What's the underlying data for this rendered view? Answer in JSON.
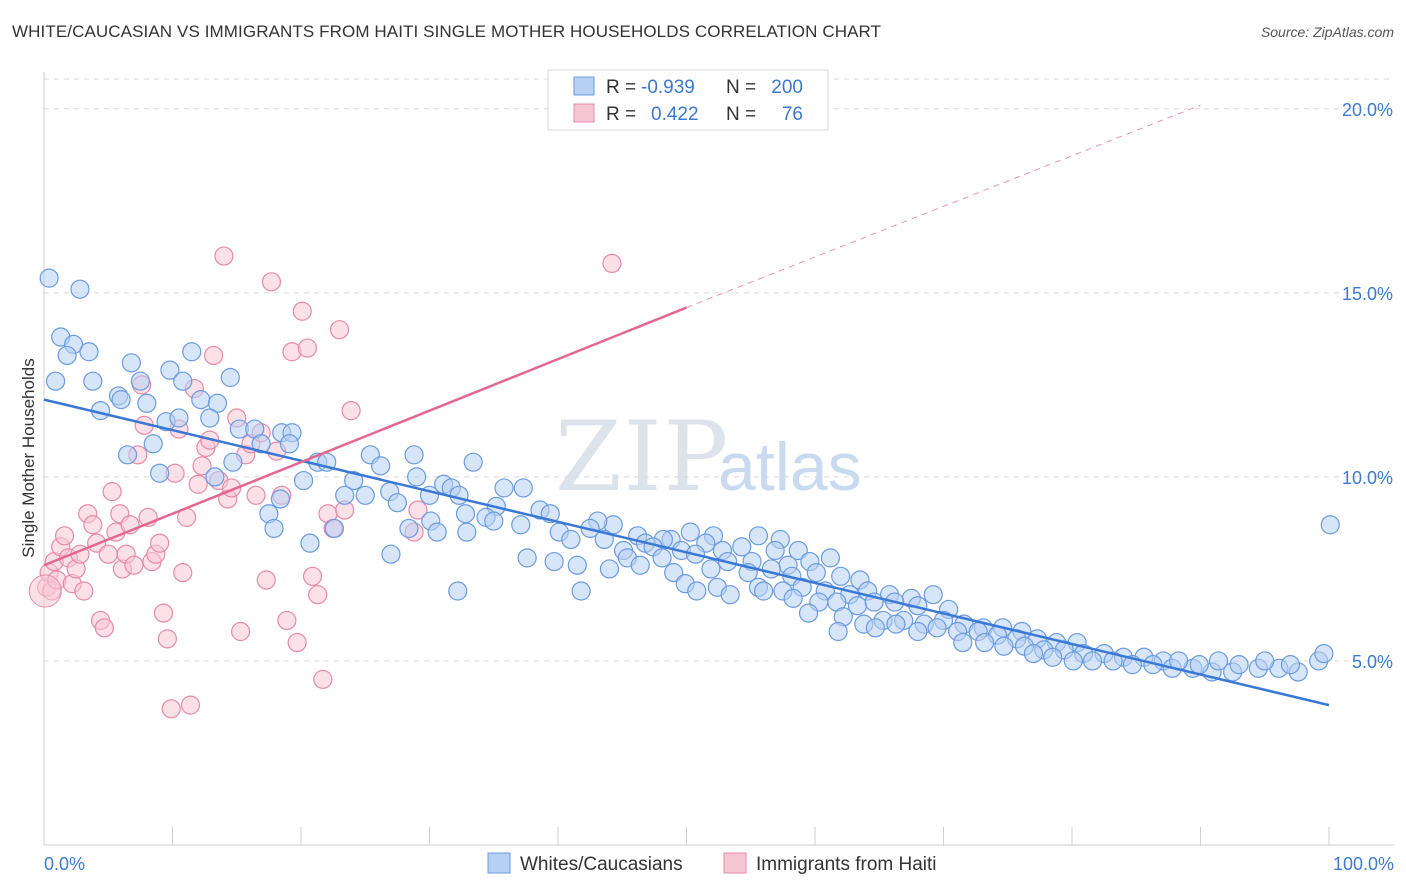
{
  "title": "WHITE/CAUCASIAN VS IMMIGRANTS FROM HAITI SINGLE MOTHER HOUSEHOLDS CORRELATION CHART",
  "source": "Source: ZipAtlas.com",
  "watermark": {
    "zip": "ZIP",
    "atlas": "atlas"
  },
  "colors": {
    "blue_fill": "#b7d0f3",
    "blue_stroke": "#6a9be0",
    "blue_line": "#3a78d4",
    "pink_fill": "#f7c6d5",
    "pink_stroke": "#e68aa8",
    "pink_line": "#e46790",
    "tick_text": "#3d7bd0",
    "grid": "#d8d8d8"
  },
  "stats_legend": {
    "rows": [
      {
        "series": "blue",
        "r_label": "R =",
        "r_value": "-0.939",
        "n_label": "N =",
        "n_value": "200"
      },
      {
        "series": "pink",
        "r_label": "R =",
        "r_value": "0.422",
        "n_label": "N =",
        "n_value": "76"
      }
    ]
  },
  "chart_data": {
    "type": "scatter",
    "title": "WHITE/CAUCASIAN VS IMMIGRANTS FROM HAITI SINGLE MOTHER HOUSEHOLDS CORRELATION CHART",
    "xlabel": "",
    "ylabel": "Single Mother Households",
    "xlim": [
      0,
      100
    ],
    "ylim": [
      0,
      21
    ],
    "x_tick_labels": [
      "0.0%",
      "100.0%"
    ],
    "y_ticks": [
      5,
      10,
      15,
      20
    ],
    "y_tick_labels": [
      "5.0%",
      "10.0%",
      "15.0%",
      "20.0%"
    ],
    "grid": "horizontal dashed",
    "legend_position": "bottom-center",
    "series": [
      {
        "name": "Whites/Caucasians",
        "color": "#6a9be0",
        "r": -0.939,
        "n": 200,
        "trend": {
          "x": [
            0,
            100
          ],
          "y": [
            12.1,
            3.8
          ]
        },
        "points": [
          [
            0.4,
            15.4
          ],
          [
            2.8,
            15.1
          ],
          [
            1.3,
            13.8
          ],
          [
            2.3,
            13.6
          ],
          [
            3.5,
            13.4
          ],
          [
            1.8,
            13.3
          ],
          [
            6.8,
            13.1
          ],
          [
            11.5,
            13.4
          ],
          [
            9.8,
            12.9
          ],
          [
            14.5,
            12.7
          ],
          [
            0.9,
            12.6
          ],
          [
            3.8,
            12.6
          ],
          [
            7.5,
            12.6
          ],
          [
            10.8,
            12.6
          ],
          [
            5.8,
            12.2
          ],
          [
            6.0,
            12.1
          ],
          [
            8.0,
            12.0
          ],
          [
            12.2,
            12.1
          ],
          [
            13.5,
            12.0
          ],
          [
            4.4,
            11.8
          ],
          [
            9.5,
            11.5
          ],
          [
            10.5,
            11.6
          ],
          [
            12.9,
            11.6
          ],
          [
            15.2,
            11.3
          ],
          [
            16.4,
            11.3
          ],
          [
            18.5,
            11.2
          ],
          [
            19.3,
            11.2
          ],
          [
            8.5,
            10.9
          ],
          [
            16.9,
            10.9
          ],
          [
            19.1,
            10.9
          ],
          [
            6.5,
            10.6
          ],
          [
            14.7,
            10.4
          ],
          [
            21.3,
            10.4
          ],
          [
            22.0,
            10.4
          ],
          [
            25.4,
            10.6
          ],
          [
            28.8,
            10.6
          ],
          [
            33.4,
            10.4
          ],
          [
            9.0,
            10.1
          ],
          [
            13.3,
            10.0
          ],
          [
            26.2,
            10.3
          ],
          [
            29.0,
            10.0
          ],
          [
            20.2,
            9.9
          ],
          [
            24.1,
            9.9
          ],
          [
            31.1,
            9.8
          ],
          [
            31.7,
            9.7
          ],
          [
            35.8,
            9.7
          ],
          [
            37.3,
            9.7
          ],
          [
            26.9,
            9.6
          ],
          [
            23.4,
            9.5
          ],
          [
            25.0,
            9.5
          ],
          [
            30.0,
            9.5
          ],
          [
            32.3,
            9.5
          ],
          [
            18.4,
            9.4
          ],
          [
            27.5,
            9.3
          ],
          [
            35.2,
            9.2
          ],
          [
            38.6,
            9.1
          ],
          [
            39.4,
            9.0
          ],
          [
            17.5,
            9.0
          ],
          [
            32.8,
            9.0
          ],
          [
            34.4,
            8.9
          ],
          [
            35.0,
            8.8
          ],
          [
            30.1,
            8.8
          ],
          [
            37.1,
            8.7
          ],
          [
            44.3,
            8.7
          ],
          [
            43.1,
            8.8
          ],
          [
            17.9,
            8.6
          ],
          [
            22.6,
            8.6
          ],
          [
            28.4,
            8.6
          ],
          [
            30.6,
            8.5
          ],
          [
            32.9,
            8.5
          ],
          [
            40.1,
            8.5
          ],
          [
            42.5,
            8.6
          ],
          [
            46.2,
            8.4
          ],
          [
            48.8,
            8.3
          ],
          [
            50.3,
            8.5
          ],
          [
            52.1,
            8.4
          ],
          [
            55.6,
            8.4
          ],
          [
            41.0,
            8.3
          ],
          [
            20.7,
            8.2
          ],
          [
            43.6,
            8.3
          ],
          [
            46.8,
            8.2
          ],
          [
            48.2,
            8.3
          ],
          [
            51.5,
            8.2
          ],
          [
            57.3,
            8.3
          ],
          [
            45.1,
            8.0
          ],
          [
            47.4,
            8.1
          ],
          [
            49.6,
            8.0
          ],
          [
            52.8,
            8.0
          ],
          [
            54.3,
            8.1
          ],
          [
            56.9,
            8.0
          ],
          [
            58.7,
            8.0
          ],
          [
            27.0,
            7.9
          ],
          [
            37.6,
            7.8
          ],
          [
            45.4,
            7.8
          ],
          [
            48.1,
            7.8
          ],
          [
            50.7,
            7.9
          ],
          [
            53.2,
            7.7
          ],
          [
            55.1,
            7.7
          ],
          [
            57.9,
            7.6
          ],
          [
            59.6,
            7.7
          ],
          [
            61.2,
            7.8
          ],
          [
            39.7,
            7.7
          ],
          [
            41.5,
            7.6
          ],
          [
            44.0,
            7.5
          ],
          [
            46.4,
            7.6
          ],
          [
            49.0,
            7.4
          ],
          [
            51.9,
            7.5
          ],
          [
            54.8,
            7.4
          ],
          [
            56.6,
            7.5
          ],
          [
            58.2,
            7.3
          ],
          [
            60.1,
            7.4
          ],
          [
            62.0,
            7.3
          ],
          [
            63.5,
            7.2
          ],
          [
            49.9,
            7.1
          ],
          [
            52.4,
            7.0
          ],
          [
            55.6,
            7.0
          ],
          [
            57.5,
            6.9
          ],
          [
            59.0,
            7.0
          ],
          [
            60.8,
            6.9
          ],
          [
            62.7,
            6.8
          ],
          [
            64.1,
            6.9
          ],
          [
            65.8,
            6.8
          ],
          [
            67.5,
            6.7
          ],
          [
            69.2,
            6.8
          ],
          [
            53.4,
            6.8
          ],
          [
            56.0,
            6.9
          ],
          [
            58.3,
            6.7
          ],
          [
            60.3,
            6.6
          ],
          [
            61.7,
            6.6
          ],
          [
            63.3,
            6.5
          ],
          [
            64.6,
            6.6
          ],
          [
            66.2,
            6.6
          ],
          [
            68.0,
            6.5
          ],
          [
            70.4,
            6.4
          ],
          [
            41.8,
            6.9
          ],
          [
            32.2,
            6.9
          ],
          [
            50.8,
            6.9
          ],
          [
            59.5,
            6.3
          ],
          [
            62.2,
            6.2
          ],
          [
            63.8,
            6.0
          ],
          [
            65.3,
            6.1
          ],
          [
            66.9,
            6.1
          ],
          [
            68.5,
            6.0
          ],
          [
            70.0,
            6.1
          ],
          [
            71.6,
            6.0
          ],
          [
            73.1,
            5.9
          ],
          [
            74.6,
            5.9
          ],
          [
            76.1,
            5.8
          ],
          [
            64.7,
            5.9
          ],
          [
            66.3,
            6.0
          ],
          [
            68.0,
            5.8
          ],
          [
            69.5,
            5.9
          ],
          [
            71.1,
            5.8
          ],
          [
            72.7,
            5.8
          ],
          [
            74.2,
            5.7
          ],
          [
            75.7,
            5.6
          ],
          [
            77.3,
            5.6
          ],
          [
            78.8,
            5.5
          ],
          [
            80.4,
            5.5
          ],
          [
            61.8,
            5.8
          ],
          [
            71.5,
            5.5
          ],
          [
            73.2,
            5.5
          ],
          [
            74.7,
            5.4
          ],
          [
            76.3,
            5.4
          ],
          [
            77.8,
            5.3
          ],
          [
            79.4,
            5.3
          ],
          [
            80.9,
            5.2
          ],
          [
            82.5,
            5.2
          ],
          [
            84.0,
            5.1
          ],
          [
            85.6,
            5.1
          ],
          [
            87.1,
            5.0
          ],
          [
            77.0,
            5.2
          ],
          [
            78.5,
            5.1
          ],
          [
            80.1,
            5.0
          ],
          [
            81.6,
            5.0
          ],
          [
            83.2,
            5.0
          ],
          [
            84.7,
            4.9
          ],
          [
            86.3,
            4.9
          ],
          [
            87.8,
            4.8
          ],
          [
            89.4,
            4.8
          ],
          [
            90.9,
            4.7
          ],
          [
            92.5,
            4.7
          ],
          [
            88.3,
            5.0
          ],
          [
            89.9,
            4.9
          ],
          [
            91.4,
            5.0
          ],
          [
            93.0,
            4.9
          ],
          [
            94.5,
            4.8
          ],
          [
            96.1,
            4.8
          ],
          [
            97.6,
            4.7
          ],
          [
            99.2,
            5.0
          ],
          [
            95.0,
            5.0
          ],
          [
            97.0,
            4.9
          ],
          [
            99.6,
            5.2
          ],
          [
            100.1,
            8.7
          ]
        ]
      },
      {
        "name": "Immigrants from Haiti",
        "color": "#e68aa8",
        "r": 0.422,
        "n": 76,
        "trend": {
          "x": [
            0,
            50
          ],
          "y": [
            7.6,
            14.6
          ]
        },
        "trend_extension": {
          "x": [
            50,
            90
          ],
          "y": [
            14.6,
            20.1
          ]
        },
        "points": [
          [
            0.2,
            7.0
          ],
          [
            0.4,
            7.4
          ],
          [
            0.6,
            6.9
          ],
          [
            0.8,
            7.7
          ],
          [
            1.0,
            7.2
          ],
          [
            1.3,
            8.1
          ],
          [
            1.6,
            8.4
          ],
          [
            1.9,
            7.8
          ],
          [
            2.2,
            7.1
          ],
          [
            2.5,
            7.5
          ],
          [
            2.8,
            7.9
          ],
          [
            3.1,
            6.9
          ],
          [
            3.4,
            9.0
          ],
          [
            3.8,
            8.7
          ],
          [
            4.1,
            8.2
          ],
          [
            4.4,
            6.1
          ],
          [
            4.7,
            5.9
          ],
          [
            5.0,
            7.9
          ],
          [
            5.3,
            9.6
          ],
          [
            5.6,
            8.5
          ],
          [
            5.9,
            9.0
          ],
          [
            6.1,
            7.5
          ],
          [
            6.4,
            7.9
          ],
          [
            6.7,
            8.7
          ],
          [
            7.0,
            7.6
          ],
          [
            7.3,
            10.6
          ],
          [
            7.6,
            12.5
          ],
          [
            7.8,
            11.4
          ],
          [
            8.1,
            8.9
          ],
          [
            8.4,
            7.7
          ],
          [
            8.7,
            7.9
          ],
          [
            9.0,
            8.2
          ],
          [
            9.3,
            6.3
          ],
          [
            9.6,
            5.6
          ],
          [
            9.9,
            3.7
          ],
          [
            10.2,
            10.1
          ],
          [
            10.5,
            11.3
          ],
          [
            10.8,
            7.4
          ],
          [
            11.1,
            8.9
          ],
          [
            11.4,
            3.8
          ],
          [
            11.7,
            12.4
          ],
          [
            12.0,
            9.8
          ],
          [
            12.3,
            10.3
          ],
          [
            12.6,
            10.8
          ],
          [
            12.9,
            11.0
          ],
          [
            13.2,
            13.3
          ],
          [
            13.6,
            9.9
          ],
          [
            14.0,
            16.0
          ],
          [
            14.3,
            9.4
          ],
          [
            14.6,
            9.7
          ],
          [
            15.0,
            11.6
          ],
          [
            15.3,
            5.8
          ],
          [
            15.7,
            10.6
          ],
          [
            16.1,
            10.9
          ],
          [
            16.5,
            9.5
          ],
          [
            16.9,
            11.2
          ],
          [
            17.3,
            7.2
          ],
          [
            17.7,
            15.3
          ],
          [
            18.1,
            10.7
          ],
          [
            18.5,
            9.5
          ],
          [
            18.9,
            6.1
          ],
          [
            19.3,
            13.4
          ],
          [
            19.7,
            5.5
          ],
          [
            20.1,
            14.5
          ],
          [
            20.5,
            13.5
          ],
          [
            20.9,
            7.3
          ],
          [
            21.3,
            6.8
          ],
          [
            21.7,
            4.5
          ],
          [
            22.1,
            9.0
          ],
          [
            22.5,
            8.6
          ],
          [
            23.0,
            14.0
          ],
          [
            23.4,
            9.1
          ],
          [
            23.9,
            11.8
          ],
          [
            28.8,
            8.5
          ],
          [
            29.1,
            9.1
          ],
          [
            44.2,
            15.8
          ]
        ]
      }
    ]
  },
  "bottom_legend": {
    "items": [
      {
        "label": "Whites/Caucasians",
        "series": "blue"
      },
      {
        "label": "Immigrants from Haiti",
        "series": "pink"
      }
    ]
  }
}
